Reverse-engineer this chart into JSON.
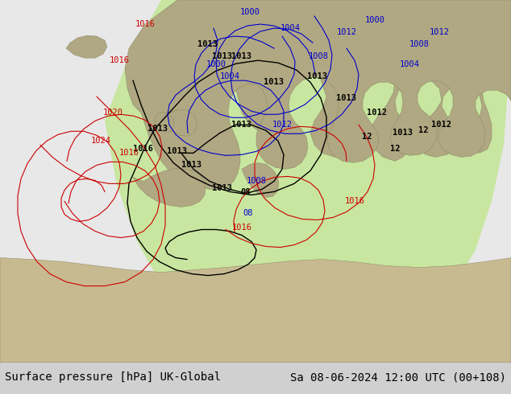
{
  "title_left": "Surface pressure [hPa] UK-Global",
  "title_right": "Sa 08-06-2024 12:00 UTC (00+108)",
  "bg_map_color": "#b0a882",
  "forecast_region_color": "#c8e6a0",
  "ocean_light_color": "#d0d8e8",
  "white_region_color": "#f0f0f0",
  "footer_bg": "#d0d0d0",
  "footer_text_color": "#000000",
  "footer_fontsize": 10,
  "contour_black_levels": [
    1013,
    1012,
    1016
  ],
  "contour_blue_levels": [
    1000,
    1004,
    1008,
    1012
  ],
  "contour_red_levels": [
    1016,
    1020,
    1024
  ],
  "label_color_black": "#000000",
  "label_color_blue": "#0000cc",
  "label_color_red": "#cc0000"
}
